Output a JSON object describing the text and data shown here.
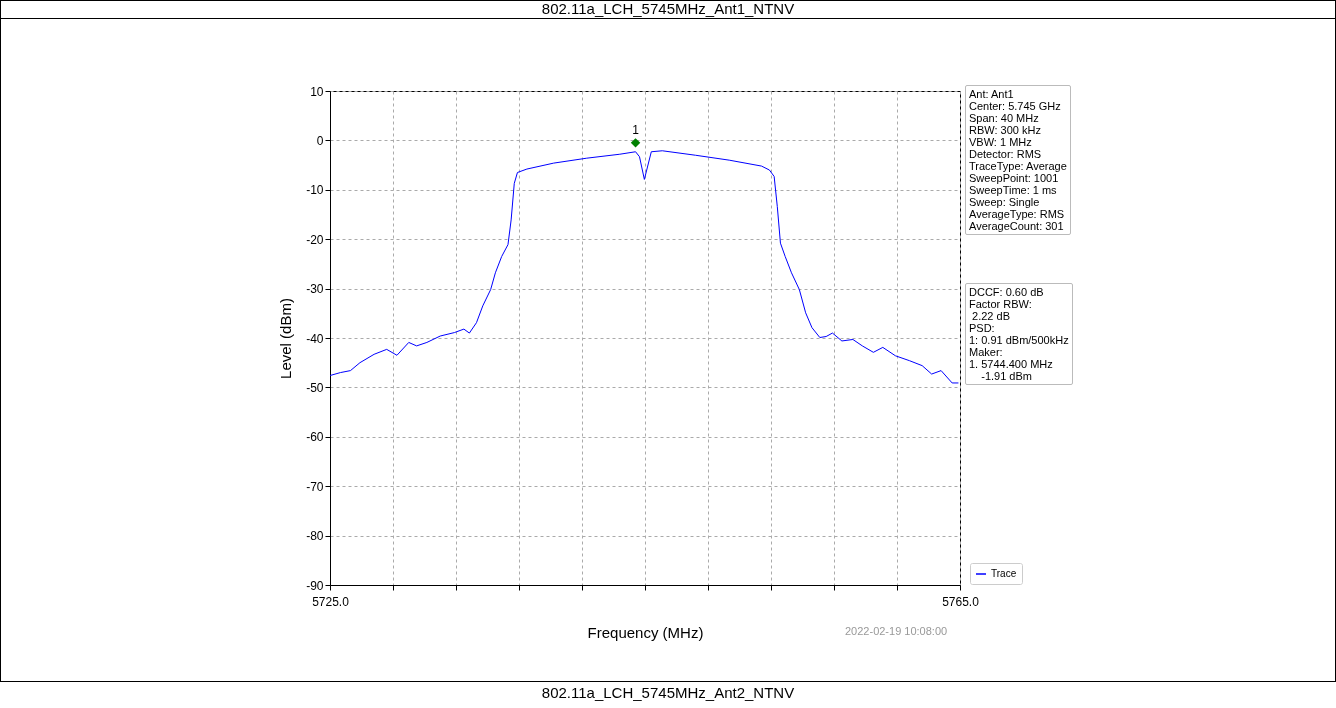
{
  "chart_data": {
    "type": "line",
    "title": "802.11a_LCH_5745MHz_Ant1_NTNV",
    "xlabel": "Frequency (MHz)",
    "ylabel": "Level (dBm)",
    "xlim": [
      5725,
      5765
    ],
    "ylim": [
      -90,
      10
    ],
    "xticks": [
      {
        "value": 5725,
        "label": "5725.0"
      },
      {
        "value": 5729,
        "label": null
      },
      {
        "value": 5733,
        "label": null
      },
      {
        "value": 5737,
        "label": null
      },
      {
        "value": 5741,
        "label": null
      },
      {
        "value": 5745,
        "label": null
      },
      {
        "value": 5749,
        "label": null
      },
      {
        "value": 5753,
        "label": null
      },
      {
        "value": 5757,
        "label": null
      },
      {
        "value": 5761,
        "label": null
      },
      {
        "value": 5765,
        "label": "5765.0"
      }
    ],
    "yticks": [
      -90,
      -80,
      -70,
      -60,
      -50,
      -40,
      -30,
      -20,
      -10,
      0,
      10
    ],
    "grid": true,
    "legend": "bottom right",
    "line_style": "solid",
    "series": [
      {
        "name": "Trace",
        "type": "line",
        "color": "#0000ff",
        "x": [
          5725.0,
          5725.66,
          5726.3,
          5726.9,
          5727.8,
          5728.6,
          5729.25,
          5730.0,
          5730.5,
          5731.15,
          5732.0,
          5732.9,
          5733.5,
          5733.85,
          5734.3,
          5734.7,
          5735.2,
          5735.5,
          5735.9,
          5736.3,
          5736.5,
          5736.7,
          5736.9,
          5737.5,
          5739.2,
          5741.3,
          5743.4,
          5744.4,
          5744.65,
          5744.96,
          5745.4,
          5746.1,
          5748.2,
          5750.35,
          5752.4,
          5752.9,
          5753.2,
          5753.4,
          5753.6,
          5753.9,
          5754.3,
          5754.8,
          5755.2,
          5755.6,
          5756.1,
          5756.5,
          5756.9,
          5757.5,
          5758.2,
          5758.8,
          5759.5,
          5760.1,
          5760.9,
          5761.8,
          5762.6,
          5763.2,
          5763.8,
          5764.5,
          5764.9
        ],
        "values": [
          -47.6,
          -47.0,
          -46.6,
          -45.0,
          -43.3,
          -42.3,
          -43.5,
          -40.9,
          -41.6,
          -40.9,
          -39.6,
          -38.9,
          -38.2,
          -39.0,
          -36.9,
          -33.5,
          -30.2,
          -26.8,
          -23.5,
          -21.1,
          -16.1,
          -8.7,
          -6.5,
          -5.8,
          -4.6,
          -3.6,
          -2.8,
          -2.3,
          -3.3,
          -7.9,
          -2.3,
          -2.1,
          -3.0,
          -4.0,
          -5.2,
          -6.0,
          -7.3,
          -13.4,
          -20.8,
          -23.5,
          -26.8,
          -30.2,
          -34.9,
          -37.9,
          -39.9,
          -39.7,
          -39.0,
          -40.6,
          -40.3,
          -41.6,
          -42.9,
          -41.9,
          -43.6,
          -44.6,
          -45.6,
          -47.3,
          -46.6,
          -49.1,
          -49.1
        ]
      },
      {
        "type": "scatter",
        "marker": "diamond",
        "color": "#008000",
        "x": [
          5744.4
        ],
        "values": [
          -0.5
        ]
      }
    ],
    "annotations": [
      {
        "text": "1",
        "x": 5744.4,
        "y": -0.5
      },
      "Ant: Ant1\nCenter: 5.745 GHz\nSpan: 40 MHz\nRBW: 300 kHz\nVBW: 1 MHz\nDetector: RMS\nTraceType: Average\nSweepPoint: 1001\nSweepTime: 1 ms\nSweep: Single\nAverageType: RMS\nAverageCount: 301",
      "DCCF: 0.60 dB\nFactor RBW:\n 2.22 dB\nPSD:\n1: 0.91 dBm/500kHz\nMaker:\n1. 5744.400 MHz\n    -1.91 dBm",
      "2022-02-19 10:08:00",
      "802.11a_LCH_5745MHz_Ant2_NTNV"
    ]
  }
}
